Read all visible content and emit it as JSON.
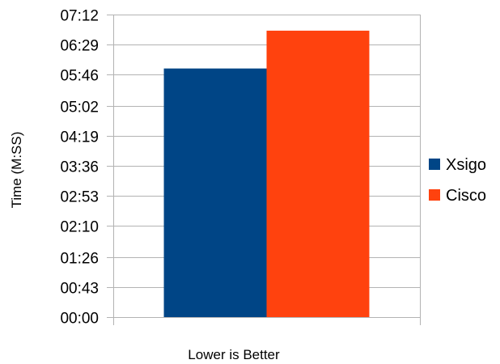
{
  "chart_data": {
    "type": "bar",
    "categories": [
      "Lower is Better"
    ],
    "series": [
      {
        "name": "Xsigo",
        "values": [
          355
        ],
        "color": "#004586"
      },
      {
        "name": "Cisco",
        "values": [
          409
        ],
        "color": "#ff420e"
      }
    ],
    "title": "",
    "xlabel": "Lower is Better",
    "ylabel": "Time (M:SS)",
    "ylim": [
      0,
      432
    ],
    "yticks": [
      0,
      43,
      86,
      130,
      173,
      216,
      259,
      302,
      346,
      389,
      432
    ],
    "ytick_labels": [
      "00:00",
      "00:43",
      "01:26",
      "02:10",
      "02:53",
      "03:36",
      "04:19",
      "05:02",
      "05:46",
      "06:29",
      "07:12"
    ],
    "grid": true,
    "legend": "right"
  }
}
